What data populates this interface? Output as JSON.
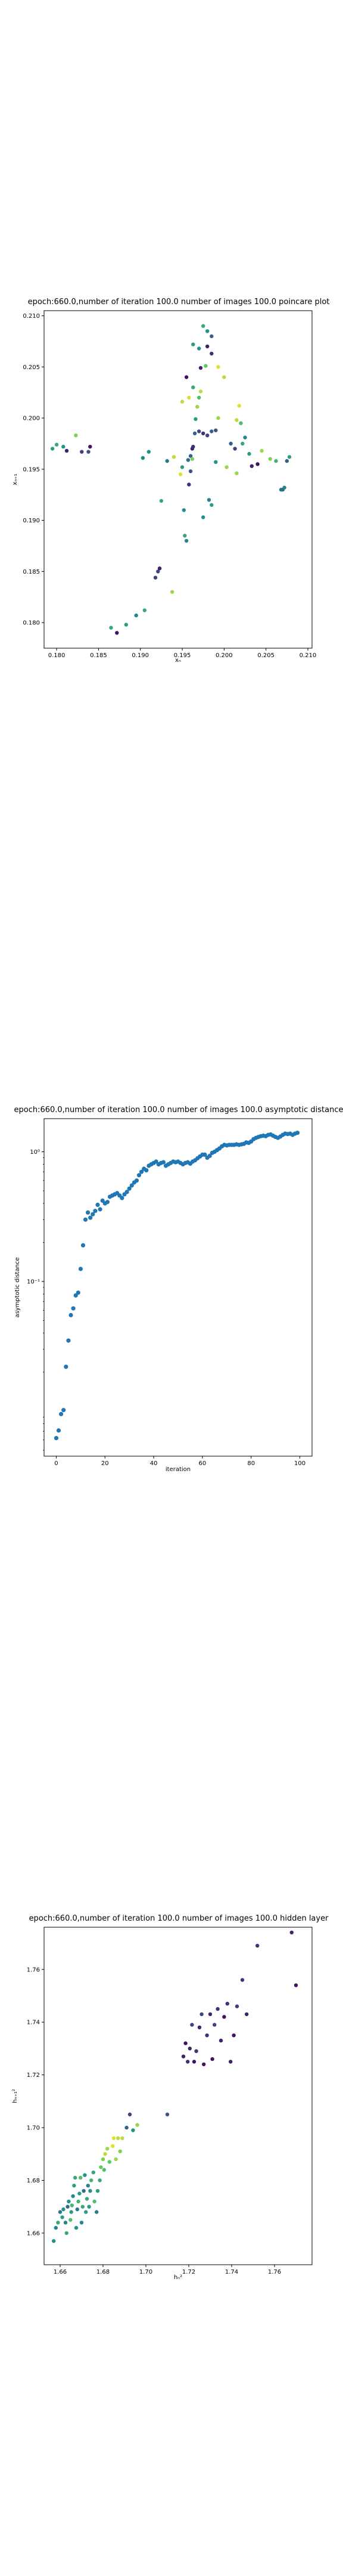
{
  "chart_data": [
    {
      "type": "scatter",
      "title": "epoch:660.0,number of iteration 100.0 number of images 100.0 poincare plot",
      "xlabel": "xₙ",
      "ylabel": "xₙ₊₁",
      "xlim": [
        0.1785,
        0.2105
      ],
      "ylim": [
        0.1775,
        0.2105
      ],
      "xticks": [
        0.18,
        0.185,
        0.19,
        0.195,
        0.2,
        0.205,
        0.21
      ],
      "yticks": [
        0.18,
        0.185,
        0.19,
        0.195,
        0.2,
        0.205,
        0.21
      ],
      "xtick_labels": [
        "0.180",
        "0.185",
        "0.190",
        "0.195",
        "0.200",
        "0.205",
        "0.210"
      ],
      "ytick_labels": [
        "0.180",
        "0.185",
        "0.190",
        "0.195",
        "0.200",
        "0.205",
        "0.210"
      ],
      "colormap": [
        "#440154",
        "#3b528b",
        "#21918c",
        "#5ec962",
        "#fde725"
      ],
      "points": [
        [
          0.1795,
          0.197,
          0.55
        ],
        [
          0.18,
          0.1974,
          0.6
        ],
        [
          0.1808,
          0.1972,
          0.5
        ],
        [
          0.1812,
          0.1968,
          0.1
        ],
        [
          0.1823,
          0.1983,
          0.8
        ],
        [
          0.183,
          0.1967,
          0.2
        ],
        [
          0.1838,
          0.1967,
          0.25
        ],
        [
          0.184,
          0.1972,
          0.05
        ],
        [
          0.1865,
          0.1795,
          0.6
        ],
        [
          0.1872,
          0.179,
          0.05
        ],
        [
          0.1883,
          0.1798,
          0.55
        ],
        [
          0.1895,
          0.1807,
          0.45
        ],
        [
          0.1905,
          0.1812,
          0.6
        ],
        [
          0.1903,
          0.1961,
          0.45
        ],
        [
          0.191,
          0.1967,
          0.5
        ],
        [
          0.1918,
          0.1844,
          0.2
        ],
        [
          0.1921,
          0.185,
          0.2
        ],
        [
          0.1923,
          0.1853,
          0.1
        ],
        [
          0.1925,
          0.1919,
          0.6
        ],
        [
          0.1932,
          0.1958,
          0.4
        ],
        [
          0.1938,
          0.183,
          0.85
        ],
        [
          0.194,
          0.1962,
          0.9
        ],
        [
          0.1948,
          0.1945,
          0.95
        ],
        [
          0.195,
          0.1952,
          0.55
        ],
        [
          0.1952,
          0.191,
          0.5
        ],
        [
          0.1953,
          0.1885,
          0.6
        ],
        [
          0.1955,
          0.188,
          0.45
        ],
        [
          0.1957,
          0.1959,
          0.35
        ],
        [
          0.196,
          0.1963,
          0.3
        ],
        [
          0.1962,
          0.196,
          0.8
        ],
        [
          0.1958,
          0.1935,
          0.15
        ],
        [
          0.196,
          0.1948,
          0.25
        ],
        [
          0.1962,
          0.197,
          0.1
        ],
        [
          0.1963,
          0.1972,
          0.15
        ],
        [
          0.1965,
          0.1985,
          0.3
        ],
        [
          0.1966,
          0.1999,
          0.55
        ],
        [
          0.1968,
          0.2011,
          0.85
        ],
        [
          0.197,
          0.202,
          0.7
        ],
        [
          0.1972,
          0.2026,
          0.9
        ],
        [
          0.1963,
          0.203,
          0.6
        ],
        [
          0.197,
          0.2068,
          0.5
        ],
        [
          0.1963,
          0.2072,
          0.55
        ],
        [
          0.1955,
          0.204,
          0.05
        ],
        [
          0.1958,
          0.202,
          0.95
        ],
        [
          0.195,
          0.2016,
          0.9
        ],
        [
          0.1972,
          0.2049,
          0.1
        ],
        [
          0.1978,
          0.2051,
          0.75
        ],
        [
          0.198,
          0.207,
          0.1
        ],
        [
          0.1985,
          0.2063,
          0.15
        ],
        [
          0.1975,
          0.209,
          0.6
        ],
        [
          0.198,
          0.2085,
          0.5
        ],
        [
          0.1985,
          0.208,
          0.3
        ],
        [
          0.197,
          0.1987,
          0.2
        ],
        [
          0.1975,
          0.1985,
          0.15
        ],
        [
          0.198,
          0.1983,
          0.2
        ],
        [
          0.1985,
          0.1987,
          0.3
        ],
        [
          0.199,
          0.1988,
          0.25
        ],
        [
          0.199,
          0.1957,
          0.5
        ],
        [
          0.1982,
          0.192,
          0.45
        ],
        [
          0.1985,
          0.1915,
          0.55
        ],
        [
          0.1975,
          0.1903,
          0.5
        ],
        [
          0.1993,
          0.2,
          0.85
        ],
        [
          0.1993,
          0.205,
          0.95
        ],
        [
          0.2,
          0.204,
          0.9
        ],
        [
          0.2003,
          0.1952,
          0.85
        ],
        [
          0.2008,
          0.1975,
          0.3
        ],
        [
          0.2013,
          0.197,
          0.2
        ],
        [
          0.2015,
          0.1946,
          0.85
        ],
        [
          0.2015,
          0.1998,
          0.9
        ],
        [
          0.2018,
          0.2012,
          0.95
        ],
        [
          0.202,
          0.1995,
          0.7
        ],
        [
          0.2022,
          0.1975,
          0.6
        ],
        [
          0.2025,
          0.1981,
          0.45
        ],
        [
          0.203,
          0.1965,
          0.55
        ],
        [
          0.2033,
          0.1953,
          0.1
        ],
        [
          0.204,
          0.1955,
          0.05
        ],
        [
          0.2045,
          0.1968,
          0.85
        ],
        [
          0.2055,
          0.196,
          0.8
        ],
        [
          0.2062,
          0.1958,
          0.65
        ],
        [
          0.2068,
          0.193,
          0.4
        ],
        [
          0.207,
          0.193,
          0.35
        ],
        [
          0.2072,
          0.1932,
          0.45
        ],
        [
          0.2075,
          0.1958,
          0.3
        ],
        [
          0.2078,
          0.1962,
          0.55
        ]
      ]
    },
    {
      "type": "scatter",
      "title": "epoch:660.0,number of iteration 100.0  number of images 100.0 asymptotic distance",
      "xlabel": "iteration",
      "ylabel": "asymptotic distance",
      "yscale": "log",
      "xlim": [
        -5,
        105
      ],
      "ylim": [
        0.0045,
        1.8
      ],
      "xticks": [
        0,
        20,
        40,
        60,
        80,
        100
      ],
      "xtick_labels": [
        "0",
        "20",
        "40",
        "60",
        "80",
        "100"
      ],
      "yticks": [
        0.1,
        1
      ],
      "ytick_labels": [
        "10⁻¹",
        "10⁰"
      ],
      "color": "#1f77b4",
      "x": [
        0,
        1,
        2,
        3,
        4,
        5,
        6,
        7,
        8,
        9,
        10,
        11,
        12,
        13,
        14,
        15,
        16,
        17,
        18,
        19,
        20,
        21,
        22,
        23,
        24,
        25,
        26,
        27,
        28,
        29,
        30,
        31,
        32,
        33,
        34,
        35,
        36,
        37,
        38,
        39,
        40,
        41,
        42,
        43,
        44,
        45,
        46,
        47,
        48,
        49,
        50,
        51,
        52,
        53,
        54,
        55,
        56,
        57,
        58,
        59,
        60,
        61,
        62,
        63,
        64,
        65,
        66,
        67,
        68,
        69,
        70,
        71,
        72,
        73,
        74,
        75,
        76,
        77,
        78,
        79,
        80,
        81,
        82,
        83,
        84,
        85,
        86,
        87,
        88,
        89,
        90,
        91,
        92,
        93,
        94,
        95,
        96,
        97,
        98,
        99
      ],
      "y": [
        0.0062,
        0.0071,
        0.0095,
        0.0102,
        0.022,
        0.035,
        0.055,
        0.062,
        0.078,
        0.082,
        0.125,
        0.19,
        0.3,
        0.34,
        0.31,
        0.33,
        0.35,
        0.39,
        0.36,
        0.42,
        0.4,
        0.41,
        0.45,
        0.46,
        0.47,
        0.48,
        0.46,
        0.44,
        0.47,
        0.49,
        0.52,
        0.55,
        0.58,
        0.6,
        0.66,
        0.7,
        0.74,
        0.72,
        0.78,
        0.8,
        0.82,
        0.84,
        0.8,
        0.82,
        0.83,
        0.78,
        0.8,
        0.82,
        0.84,
        0.83,
        0.84,
        0.82,
        0.8,
        0.82,
        0.83,
        0.81,
        0.84,
        0.86,
        0.89,
        0.92,
        0.95,
        0.95,
        0.9,
        0.93,
        0.98,
        1.0,
        1.03,
        1.06,
        1.1,
        1.13,
        1.12,
        1.13,
        1.13,
        1.13,
        1.14,
        1.13,
        1.14,
        1.15,
        1.18,
        1.17,
        1.2,
        1.25,
        1.28,
        1.3,
        1.32,
        1.33,
        1.32,
        1.35,
        1.36,
        1.33,
        1.3,
        1.28,
        1.31,
        1.35,
        1.38,
        1.37,
        1.38,
        1.35,
        1.38,
        1.4
      ]
    },
    {
      "type": "scatter",
      "title": "epoch:660.0,number of iteration 100.0  number of images 100.0 hidden layer",
      "xlabel": "hₙ²",
      "ylabel": "hₙ₊₁²",
      "xlim": [
        1.6525,
        1.7775
      ],
      "ylim": [
        1.648,
        1.776
      ],
      "xticks": [
        1.66,
        1.68,
        1.7,
        1.72,
        1.74,
        1.76
      ],
      "xtick_labels": [
        "1.66",
        "1.68",
        "1.70",
        "1.72",
        "1.74",
        "1.76"
      ],
      "yticks": [
        1.66,
        1.68,
        1.7,
        1.72,
        1.74,
        1.76
      ],
      "ytick_labels": [
        "1.66",
        "1.68",
        "1.70",
        "1.72",
        "1.74",
        "1.76"
      ],
      "colormap": [
        "#440154",
        "#3b528b",
        "#21918c",
        "#5ec962",
        "#fde725"
      ],
      "points": [
        [
          1.657,
          1.657,
          0.5
        ],
        [
          1.658,
          1.662,
          0.45
        ],
        [
          1.659,
          1.664,
          0.6
        ],
        [
          1.66,
          1.668,
          0.4
        ],
        [
          1.661,
          1.666,
          0.55
        ],
        [
          1.6615,
          1.669,
          0.5
        ],
        [
          1.6625,
          1.664,
          0.45
        ],
        [
          1.663,
          1.66,
          0.6
        ],
        [
          1.6635,
          1.67,
          0.35
        ],
        [
          1.664,
          1.672,
          0.5
        ],
        [
          1.6648,
          1.665,
          0.7
        ],
        [
          1.6652,
          1.668,
          0.55
        ],
        [
          1.6655,
          1.6705,
          0.65
        ],
        [
          1.666,
          1.674,
          0.45
        ],
        [
          1.6665,
          1.678,
          0.55
        ],
        [
          1.667,
          1.681,
          0.6
        ],
        [
          1.6675,
          1.662,
          0.5
        ],
        [
          1.668,
          1.669,
          0.4
        ],
        [
          1.6685,
          1.672,
          0.65
        ],
        [
          1.669,
          1.675,
          0.55
        ],
        [
          1.6695,
          1.681,
          0.7
        ],
        [
          1.67,
          1.664,
          0.45
        ],
        [
          1.6705,
          1.67,
          0.6
        ],
        [
          1.671,
          1.676,
          0.35
        ],
        [
          1.6715,
          1.682,
          0.5
        ],
        [
          1.672,
          1.668,
          0.55
        ],
        [
          1.6725,
          1.673,
          0.6
        ],
        [
          1.673,
          1.678,
          0.45
        ],
        [
          1.6735,
          1.67,
          0.55
        ],
        [
          1.674,
          1.676,
          0.5
        ],
        [
          1.6745,
          1.68,
          0.65
        ],
        [
          1.6755,
          1.683,
          0.6
        ],
        [
          1.676,
          1.672,
          0.7
        ],
        [
          1.677,
          1.668,
          0.4
        ],
        [
          1.6775,
          1.676,
          0.55
        ],
        [
          1.6785,
          1.68,
          0.6
        ],
        [
          1.679,
          1.685,
          0.75
        ],
        [
          1.68,
          1.688,
          0.8
        ],
        [
          1.6805,
          1.684,
          0.7
        ],
        [
          1.681,
          1.69,
          0.9
        ],
        [
          1.682,
          1.692,
          0.85
        ],
        [
          1.683,
          1.687,
          0.75
        ],
        [
          1.6845,
          1.693,
          0.95
        ],
        [
          1.685,
          1.696,
          0.95
        ],
        [
          1.686,
          1.688,
          0.85
        ],
        [
          1.687,
          1.696,
          0.9
        ],
        [
          1.688,
          1.691,
          0.8
        ],
        [
          1.689,
          1.696,
          0.9
        ],
        [
          1.691,
          1.7,
          0.3
        ],
        [
          1.6925,
          1.705,
          0.2
        ],
        [
          1.694,
          1.699,
          0.5
        ],
        [
          1.696,
          1.701,
          0.85
        ],
        [
          1.71,
          1.705,
          0.25
        ],
        [
          1.7175,
          1.727,
          0.1
        ],
        [
          1.7185,
          1.732,
          0.05
        ],
        [
          1.7195,
          1.725,
          0.15
        ],
        [
          1.7205,
          1.73,
          0.1
        ],
        [
          1.7215,
          1.739,
          0.2
        ],
        [
          1.7225,
          1.725,
          0.05
        ],
        [
          1.7235,
          1.729,
          0.15
        ],
        [
          1.725,
          1.738,
          0.1
        ],
        [
          1.726,
          1.743,
          0.2
        ],
        [
          1.727,
          1.724,
          0.05
        ],
        [
          1.7285,
          1.735,
          0.15
        ],
        [
          1.73,
          1.743,
          0.1
        ],
        [
          1.731,
          1.726,
          0.05
        ],
        [
          1.732,
          1.739,
          0.2
        ],
        [
          1.7335,
          1.745,
          0.15
        ],
        [
          1.735,
          1.733,
          0.1
        ],
        [
          1.7365,
          1.742,
          0.05
        ],
        [
          1.738,
          1.747,
          0.15
        ],
        [
          1.7395,
          1.725,
          0.1
        ],
        [
          1.741,
          1.735,
          0.05
        ],
        [
          1.7425,
          1.746,
          0.2
        ],
        [
          1.745,
          1.756,
          0.15
        ],
        [
          1.747,
          1.743,
          0.1
        ],
        [
          1.752,
          1.769,
          0.15
        ],
        [
          1.768,
          1.774,
          0.1
        ],
        [
          1.77,
          1.754,
          0.05
        ]
      ]
    }
  ]
}
